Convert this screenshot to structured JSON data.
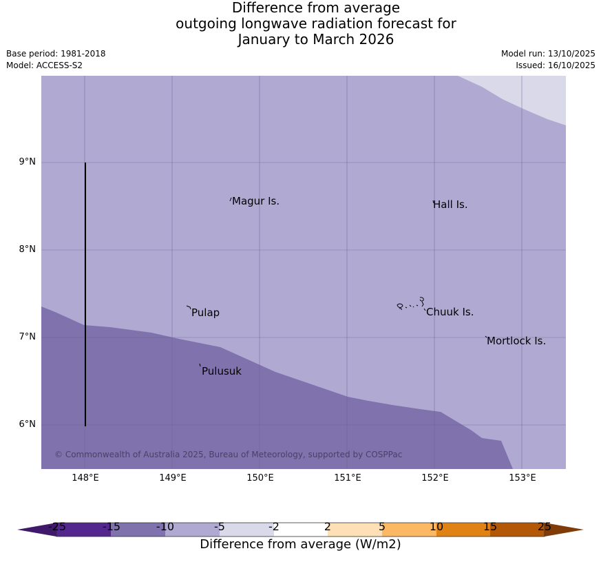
{
  "title": {
    "line1": "Difference from average",
    "line2": "outgoing longwave radiation forecast for",
    "line3": "January to March 2026"
  },
  "meta": {
    "base_period": "Base period: 1981-2018",
    "model": "Model: ACCESS-S2",
    "model_run": "Model run: 13/10/2025",
    "issued": "Issued: 16/10/2025"
  },
  "axes": {
    "lat_labels": [
      "9°N",
      "8°N",
      "7°N",
      "6°N"
    ],
    "lon_labels": [
      "148°E",
      "149°E",
      "150°E",
      "151°E",
      "152°E",
      "153°E"
    ]
  },
  "places": [
    {
      "name": "Magur Is."
    },
    {
      "name": "Hall Is."
    },
    {
      "name": "Pulap"
    },
    {
      "name": "Chuuk Is."
    },
    {
      "name": "Mortlock Is."
    },
    {
      "name": "Pulusuk"
    }
  ],
  "copyright": "© Commonwealth of Australia 2025, Bureau of Meteorology, supported by COSPPac",
  "legend": {
    "title": "Difference from average (W/m2)",
    "ticks": [
      "-25",
      "-15",
      "-10",
      "-5",
      "-2",
      "2",
      "5",
      "10",
      "15",
      "25"
    ],
    "colors": [
      "#3f1a6b",
      "#54278f",
      "#7f72ad",
      "#b0aad3",
      "#d9d9ea",
      "#ffffff",
      "#fee0b6",
      "#fdb863",
      "#e08214",
      "#b35806",
      "#7f3b08"
    ]
  },
  "map_colors": {
    "light_purple": "#b0aad3",
    "mid_purple": "#7f72ad",
    "pale_purple": "#d9d9ea"
  }
}
